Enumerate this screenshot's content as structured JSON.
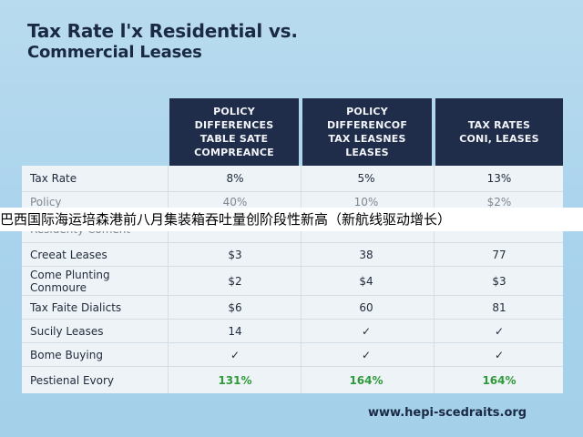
{
  "title": {
    "line1": "Tax Rate l'x Residential vs.",
    "line2": "Commercial Leases"
  },
  "headers": [
    {
      "lines": [
        "POLICY",
        "DIFFERENCES",
        "TABLE SATE",
        "COMPREANCE"
      ]
    },
    {
      "lines": [
        "POLICY",
        "DIFFERENCOF",
        "TAX LEASNES",
        "LEASES"
      ]
    },
    {
      "lines": [
        "TAX RATES",
        "CONI, LEASES"
      ]
    }
  ],
  "rows": [
    {
      "label": [
        "Tax Rate"
      ],
      "values": [
        "8%",
        "5%",
        "13%"
      ]
    },
    {
      "label": [
        "Policy",
        "Residenty Coment"
      ],
      "values": [
        "40%",
        "10%",
        "$2%"
      ]
    },
    {
      "label": [
        "Creeat Leases"
      ],
      "values": [
        "$3",
        "38",
        "77"
      ]
    },
    {
      "label": [
        "Come Plunting",
        "Conmoure"
      ],
      "values": [
        "$2",
        "$4",
        "$3"
      ]
    },
    {
      "label": [
        "Tax Faite Dialicts"
      ],
      "values": [
        "$6",
        "60",
        "81"
      ]
    },
    {
      "label": [
        "Sucily Leases"
      ],
      "values": [
        "14",
        "✓",
        "✓"
      ]
    },
    {
      "label": [
        "Bome Buying"
      ],
      "values": [
        "✓",
        "✓",
        "✓"
      ]
    },
    {
      "label": [
        "Pestienal Evory"
      ],
      "values": [
        "131%",
        "164%",
        "164%"
      ]
    }
  ],
  "banner_text": "巴西国际海运培森港前八月集装箱吞吐量创阶段性新高（新航线驱动增长）",
  "footer_url": "www.hepi-scedraits.org",
  "colors": {
    "header_bg": "#1f2d4a",
    "green_values": "#2f9a3a"
  }
}
